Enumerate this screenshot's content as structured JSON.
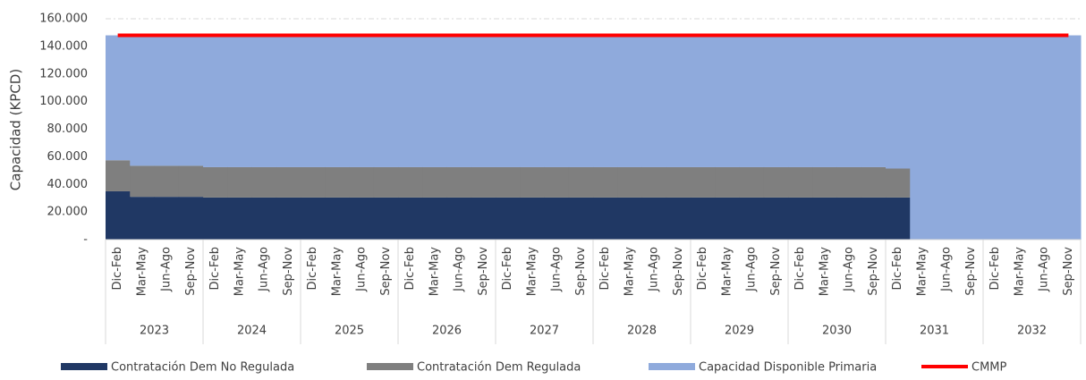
{
  "chart_data": {
    "type": "stacked_area_step",
    "y_axis_label": "Capacidad (KPCD)",
    "categories": [
      "Dic-Feb",
      "Mar-May",
      "Jun-Ago",
      "Sep-Nov",
      "Dic-Feb",
      "Mar-May",
      "Jun-Ago",
      "Sep-Nov",
      "Dic-Feb",
      "Mar-May",
      "Jun-Ago",
      "Sep-Nov",
      "Dic-Feb",
      "Mar-May",
      "Jun-Ago",
      "Sep-Nov",
      "Dic-Feb",
      "Mar-May",
      "Jun-Ago",
      "Sep-Nov",
      "Dic-Feb",
      "Mar-May",
      "Jun-Ago",
      "Sep-Nov",
      "Dic-Feb",
      "Mar-May",
      "Jun-Ago",
      "Sep-Nov",
      "Dic-Feb",
      "Mar-May",
      "Jun-Ago",
      "Sep-Nov",
      "Dic-Feb",
      "Mar-May",
      "Jun-Ago",
      "Sep-Nov",
      "Dic-Feb",
      "Mar-May",
      "Jun-Ago",
      "Sep-Nov"
    ],
    "years": [
      "2023",
      "2024",
      "2025",
      "2026",
      "2027",
      "2028",
      "2029",
      "2030",
      "2031",
      "2032"
    ],
    "series": [
      {
        "name": "Contratación Dem No Regulada",
        "color": "#203864",
        "values": [
          35000,
          31000,
          31000,
          31000,
          30500,
          30500,
          30500,
          30500,
          30500,
          30500,
          30500,
          30500,
          30500,
          30500,
          30500,
          30500,
          30500,
          30500,
          30500,
          30500,
          30500,
          30500,
          30500,
          30500,
          30500,
          30500,
          30500,
          30500,
          30500,
          30500,
          30500,
          30500,
          30500,
          0,
          0,
          0,
          0,
          0,
          0,
          0
        ]
      },
      {
        "name": "Contratación Dem Regulada",
        "color": "#7f7f7f",
        "values": [
          22500,
          22500,
          22500,
          22500,
          22000,
          22000,
          22000,
          22000,
          22000,
          22000,
          22000,
          22000,
          22000,
          22000,
          22000,
          22000,
          22000,
          22000,
          22000,
          22000,
          22000,
          22000,
          22000,
          22000,
          22000,
          22000,
          22000,
          22000,
          22000,
          22000,
          22000,
          22000,
          21000,
          0,
          0,
          0,
          0,
          0,
          0,
          0
        ]
      },
      {
        "name": "Capacidad Disponible Primaria",
        "color": "#8faadc",
        "values": [
          90500,
          94500,
          94500,
          94500,
          95500,
          95500,
          95500,
          95500,
          95500,
          95500,
          95500,
          95500,
          95500,
          95500,
          95500,
          95500,
          95500,
          95500,
          95500,
          95500,
          95500,
          95500,
          95500,
          95500,
          95500,
          95500,
          95500,
          95500,
          95500,
          95500,
          95500,
          95500,
          96500,
          148000,
          148000,
          148000,
          148000,
          148000,
          148000,
          148000
        ]
      }
    ],
    "line_series": {
      "name": "CMMP",
      "color": "#ff0000",
      "values": [
        148000,
        148000,
        148000,
        148000,
        148000,
        148000,
        148000,
        148000,
        148000,
        148000,
        148000,
        148000,
        148000,
        148000,
        148000,
        148000,
        148000,
        148000,
        148000,
        148000,
        148000,
        148000,
        148000,
        148000,
        148000,
        148000,
        148000,
        148000,
        148000,
        148000,
        148000,
        148000,
        148000,
        148000,
        148000,
        148000,
        148000,
        148000,
        148000,
        148000
      ]
    },
    "ylim": [
      0,
      160000
    ],
    "yticks": [
      {
        "value": 0,
        "label": "-"
      },
      {
        "value": 20000,
        "label": "20.000"
      },
      {
        "value": 40000,
        "label": "40.000"
      },
      {
        "value": 60000,
        "label": "60.000"
      },
      {
        "value": 80000,
        "label": "80.000"
      },
      {
        "value": 100000,
        "label": "100.000"
      },
      {
        "value": 120000,
        "label": "120.000"
      },
      {
        "value": 140000,
        "label": "140.000"
      },
      {
        "value": 160000,
        "label": "160.000"
      }
    ],
    "grid": true
  }
}
